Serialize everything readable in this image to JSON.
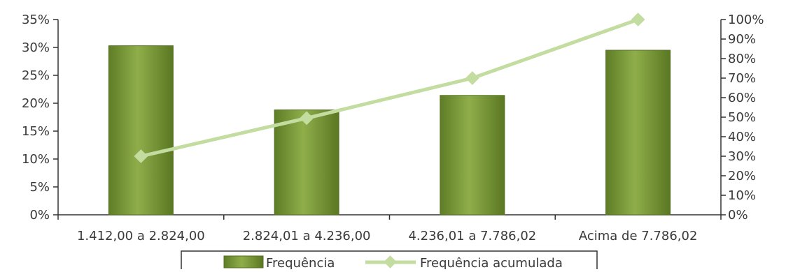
{
  "chart_data": {
    "type": "bar",
    "categories": [
      "1.412,00 a 2.824,00",
      "2.824,01 a 4.236,00",
      "4.236,01 a 7.786,02",
      "Acima de 7.786,02"
    ],
    "series": [
      {
        "name": "Frequência",
        "type": "bar",
        "axis": "left",
        "values": [
          30.3,
          18.8,
          21.4,
          29.5
        ],
        "color": "#7a9a3a"
      },
      {
        "name": "Frequência acumulada",
        "type": "line",
        "axis": "right",
        "values": [
          30,
          49.5,
          70,
          100
        ],
        "color": "#c3dca0"
      }
    ],
    "y_left": {
      "ticks": [
        "0%",
        "5%",
        "10%",
        "15%",
        "20%",
        "25%",
        "30%",
        "35%"
      ],
      "min": 0,
      "max": 35
    },
    "y_right": {
      "ticks": [
        "0%",
        "10%",
        "20%",
        "30%",
        "40%",
        "50%",
        "60%",
        "70%",
        "80%",
        "90%",
        "100%"
      ],
      "min": 0,
      "max": 100
    },
    "legend": {
      "position": "bottom",
      "items": [
        "Frequência",
        "Frequência acumulada"
      ]
    },
    "title": "",
    "grid": false
  }
}
